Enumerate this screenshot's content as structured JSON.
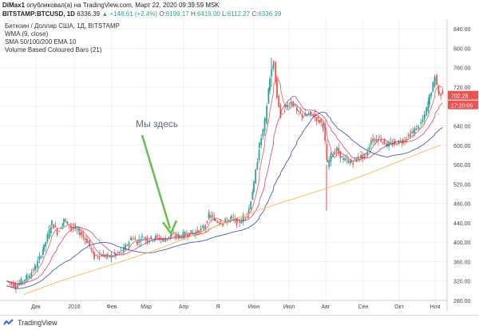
{
  "header": {
    "user": "DiMax1",
    "published": "опубликовал(а) на TradingView.com, Март 22, 2020 09:39:59 MSK",
    "symbol": "BITSTAMP:BTCUSD, 1D",
    "price": "6336.39",
    "change": "▲ +148.61 (+2.4%)",
    "o_label": "O:",
    "o_val": "6199.17",
    "h_label": "H:",
    "h_val": "6419.00",
    "l_label": "L:",
    "l_val": "6112.27",
    "c_label": "C:",
    "c_val": "6336.39"
  },
  "legend": {
    "title": "Биткоин / Доллар США, 1Д, BITSTAMP",
    "wma": "WMA (9, close)",
    "sma": "SMA 50/100/200 EMA 10",
    "vol": "Volume Based Coloured Bars (21)"
  },
  "annotation": {
    "text": "Мы здесь"
  },
  "price_axis": {
    "labels": [
      "840.00",
      "800.00",
      "760.00",
      "720.00",
      "680.00",
      "640.00",
      "600.00",
      "560.00",
      "520.00",
      "480.00",
      "440.00",
      "400.00",
      "360.00",
      "320.00",
      "280.00"
    ],
    "current_price": "702.28",
    "current_time": "17:20:06"
  },
  "time_axis": {
    "labels": [
      "Дек",
      "2016",
      "Фев",
      "Мар",
      "Апр",
      "Я",
      "Июн",
      "Июл",
      "Авг",
      "Сен",
      "Окт",
      "Ноя"
    ]
  },
  "footer": {
    "brand": "TradingView"
  },
  "colors": {
    "up": "#26a69a",
    "down": "#ef5350",
    "arrow": "#6abf4b",
    "price_tag": "#ef5350"
  },
  "chart_data": {
    "type": "line",
    "title": "Биткоин / Доллар США, 1Д, BITSTAMP",
    "ylim": [
      280,
      860
    ],
    "x": [
      "Дек",
      "2016",
      "Фев",
      "Мар",
      "Апр",
      "Я",
      "Июн",
      "Июл",
      "Авг",
      "Сен",
      "Окт",
      "Ноя"
    ],
    "series": [
      {
        "name": "WMA (9, close)",
        "values": [
          340,
          440,
          395,
          405,
          420,
          445,
          690,
          660,
          580,
          600,
          630,
          700
        ]
      },
      {
        "name": "SMA 50/100/200 EMA 10",
        "values": [
          290,
          345,
          360,
          390,
          405,
          430,
          480,
          530,
          555,
          575,
          595,
          640
        ]
      }
    ]
  }
}
